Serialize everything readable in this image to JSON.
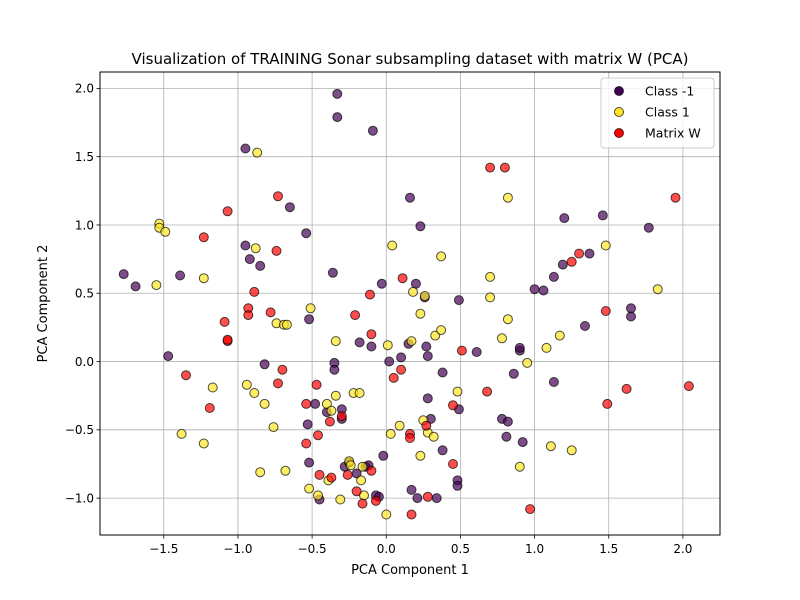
{
  "chart_data": {
    "type": "scatter",
    "title": "Visualization of TRAINING Sonar subsampling dataset with matrix W (PCA)",
    "xlabel": "PCA Component 1",
    "ylabel": "PCA Component 2",
    "xlim": [
      -1.93,
      2.25
    ],
    "ylim": [
      -1.27,
      2.12
    ],
    "xticks": [
      -1.5,
      -1.0,
      -0.5,
      0.0,
      0.5,
      1.0,
      1.5,
      2.0
    ],
    "xtick_labels": [
      "−1.5",
      "−1.0",
      "−0.5",
      "0.0",
      "0.5",
      "1.0",
      "1.5",
      "2.0"
    ],
    "yticks": [
      -1.0,
      -0.5,
      0.0,
      0.5,
      1.0,
      1.5,
      2.0
    ],
    "ytick_labels": [
      "−1.0",
      "−0.5",
      "0.0",
      "0.5",
      "1.0",
      "1.5",
      "2.0"
    ],
    "grid": true,
    "legend_position": "top-right",
    "series": [
      {
        "name": "Class -1",
        "color": "#440154",
        "points": [
          [
            -1.77,
            0.64
          ],
          [
            -1.69,
            0.55
          ],
          [
            -1.47,
            0.04
          ],
          [
            -1.39,
            0.63
          ],
          [
            -0.95,
            1.56
          ],
          [
            -0.95,
            0.85
          ],
          [
            -0.92,
            0.75
          ],
          [
            -0.85,
            0.7
          ],
          [
            -0.82,
            -0.02
          ],
          [
            -0.65,
            1.13
          ],
          [
            -0.54,
            0.94
          ],
          [
            -0.52,
            0.31
          ],
          [
            -0.53,
            -0.46
          ],
          [
            -0.52,
            -0.74
          ],
          [
            -0.48,
            -0.31
          ],
          [
            -0.45,
            -1.01
          ],
          [
            -0.4,
            -0.37
          ],
          [
            -0.36,
            0.65
          ],
          [
            -0.35,
            -0.01
          ],
          [
            -0.35,
            -0.06
          ],
          [
            -0.33,
            1.96
          ],
          [
            -0.33,
            1.79
          ],
          [
            -0.3,
            -0.42
          ],
          [
            -0.3,
            -0.35
          ],
          [
            -0.28,
            -0.77
          ],
          [
            -0.25,
            -0.74
          ],
          [
            -0.2,
            -0.82
          ],
          [
            -0.18,
            0.14
          ],
          [
            -0.14,
            -0.77
          ],
          [
            -0.12,
            -0.76
          ],
          [
            -0.1,
            0.11
          ],
          [
            -0.09,
            1.69
          ],
          [
            -0.07,
            -0.98
          ],
          [
            -0.05,
            -0.99
          ],
          [
            -0.03,
            0.57
          ],
          [
            -0.02,
            -0.69
          ],
          [
            0.02,
            0.0
          ],
          [
            0.1,
            0.03
          ],
          [
            0.15,
            0.13
          ],
          [
            0.16,
            1.2
          ],
          [
            0.17,
            -0.94
          ],
          [
            0.2,
            0.57
          ],
          [
            0.21,
            -1.0
          ],
          [
            0.23,
            0.99
          ],
          [
            0.26,
            0.47
          ],
          [
            0.27,
            0.11
          ],
          [
            0.28,
            0.04
          ],
          [
            0.28,
            -0.27
          ],
          [
            0.3,
            -0.42
          ],
          [
            0.34,
            -1.0
          ],
          [
            0.38,
            -0.08
          ],
          [
            0.38,
            -0.65
          ],
          [
            0.48,
            -0.87
          ],
          [
            0.48,
            -0.91
          ],
          [
            0.49,
            0.45
          ],
          [
            0.49,
            -0.35
          ],
          [
            0.61,
            0.07
          ],
          [
            0.78,
            -0.42
          ],
          [
            0.81,
            -0.55
          ],
          [
            0.82,
            -0.44
          ],
          [
            0.86,
            -0.09
          ],
          [
            0.9,
            0.08
          ],
          [
            0.9,
            0.1
          ],
          [
            0.92,
            -0.59
          ],
          [
            1.0,
            0.53
          ],
          [
            1.06,
            0.52
          ],
          [
            1.13,
            -0.15
          ],
          [
            1.13,
            0.62
          ],
          [
            1.2,
            1.05
          ],
          [
            1.19,
            0.71
          ],
          [
            1.34,
            0.26
          ],
          [
            1.37,
            0.79
          ],
          [
            1.46,
            1.07
          ],
          [
            1.65,
            0.39
          ],
          [
            1.65,
            0.33
          ],
          [
            1.77,
            0.98
          ]
        ]
      },
      {
        "name": "Class 1",
        "color": "#fde725",
        "points": [
          [
            -1.53,
            1.01
          ],
          [
            -1.53,
            0.98
          ],
          [
            -1.49,
            0.95
          ],
          [
            -1.55,
            0.56
          ],
          [
            -1.38,
            -0.53
          ],
          [
            -1.23,
            0.61
          ],
          [
            -1.23,
            -0.6
          ],
          [
            -1.17,
            -0.19
          ],
          [
            -0.94,
            -0.17
          ],
          [
            -0.89,
            -0.23
          ],
          [
            -0.87,
            1.53
          ],
          [
            -0.88,
            0.83
          ],
          [
            -0.85,
            -0.81
          ],
          [
            -0.82,
            -0.31
          ],
          [
            -0.76,
            -0.48
          ],
          [
            -0.74,
            0.28
          ],
          [
            -0.69,
            0.27
          ],
          [
            -0.67,
            0.27
          ],
          [
            -0.68,
            -0.8
          ],
          [
            -0.51,
            0.39
          ],
          [
            -0.52,
            -0.93
          ],
          [
            -0.46,
            -0.98
          ],
          [
            -0.4,
            -0.31
          ],
          [
            -0.39,
            -0.87
          ],
          [
            -0.37,
            -0.36
          ],
          [
            -0.34,
            0.15
          ],
          [
            -0.34,
            -0.25
          ],
          [
            -0.25,
            -0.73
          ],
          [
            -0.24,
            -0.76
          ],
          [
            -0.22,
            -0.23
          ],
          [
            -0.18,
            -0.23
          ],
          [
            -0.17,
            -0.87
          ],
          [
            -0.16,
            -0.77
          ],
          [
            -0.15,
            -0.98
          ],
          [
            0.01,
            0.12
          ],
          [
            0.03,
            -0.53
          ],
          [
            0.04,
            0.85
          ],
          [
            0.09,
            -0.47
          ],
          [
            0.17,
            0.15
          ],
          [
            0.18,
            0.51
          ],
          [
            0.23,
            -0.69
          ],
          [
            0.23,
            0.35
          ],
          [
            0.25,
            -0.43
          ],
          [
            0.26,
            0.48
          ],
          [
            0.28,
            -0.52
          ],
          [
            0.32,
            -0.55
          ],
          [
            0.33,
            0.19
          ],
          [
            0.37,
            0.77
          ],
          [
            0.37,
            0.23
          ],
          [
            0.48,
            -0.22
          ],
          [
            0.7,
            0.62
          ],
          [
            0.7,
            0.47
          ],
          [
            0.78,
            0.17
          ],
          [
            0.82,
            1.2
          ],
          [
            0.82,
            0.31
          ],
          [
            0.9,
            -0.77
          ],
          [
            0.95,
            -0.01
          ],
          [
            1.08,
            0.1
          ],
          [
            1.11,
            -0.62
          ],
          [
            1.17,
            0.19
          ],
          [
            1.25,
            -0.65
          ],
          [
            1.48,
            0.85
          ],
          [
            1.83,
            0.53
          ],
          [
            0.0,
            -1.12
          ],
          [
            -0.31,
            -1.01
          ]
        ]
      },
      {
        "name": "Matrix W",
        "color": "#ff0000",
        "points": [
          [
            -1.35,
            -0.1
          ],
          [
            -1.23,
            0.91
          ],
          [
            -1.19,
            -0.34
          ],
          [
            -1.09,
            0.29
          ],
          [
            -1.07,
            0.15
          ],
          [
            -1.07,
            0.16
          ],
          [
            -1.07,
            1.1
          ],
          [
            -0.93,
            0.39
          ],
          [
            -0.93,
            0.34
          ],
          [
            -0.89,
            0.51
          ],
          [
            -0.78,
            0.36
          ],
          [
            -0.73,
            1.21
          ],
          [
            -0.74,
            0.81
          ],
          [
            -0.73,
            -0.16
          ],
          [
            -0.7,
            -0.06
          ],
          [
            -0.54,
            -0.31
          ],
          [
            -0.54,
            -0.6
          ],
          [
            -0.47,
            -0.17
          ],
          [
            -0.46,
            -0.54
          ],
          [
            -0.45,
            -0.83
          ],
          [
            -0.38,
            -0.44
          ],
          [
            -0.37,
            -0.85
          ],
          [
            -0.3,
            -0.4
          ],
          [
            -0.26,
            -0.83
          ],
          [
            -0.21,
            0.34
          ],
          [
            -0.2,
            -0.95
          ],
          [
            -0.16,
            -1.04
          ],
          [
            -0.1,
            0.2
          ],
          [
            -0.1,
            -0.8
          ],
          [
            -0.11,
            0.49
          ],
          [
            -0.07,
            -1.02
          ],
          [
            0.05,
            -0.12
          ],
          [
            0.1,
            -0.06
          ],
          [
            0.11,
            0.61
          ],
          [
            0.16,
            -0.53
          ],
          [
            0.16,
            -0.56
          ],
          [
            0.17,
            -1.12
          ],
          [
            0.27,
            -0.47
          ],
          [
            0.28,
            -0.99
          ],
          [
            0.45,
            -0.32
          ],
          [
            0.45,
            -0.75
          ],
          [
            0.51,
            0.08
          ],
          [
            0.68,
            -0.22
          ],
          [
            0.7,
            1.42
          ],
          [
            0.8,
            1.42
          ],
          [
            0.97,
            -1.08
          ],
          [
            1.25,
            0.73
          ],
          [
            1.3,
            0.79
          ],
          [
            1.48,
            0.37
          ],
          [
            1.49,
            -0.31
          ],
          [
            1.62,
            -0.2
          ],
          [
            1.95,
            1.2
          ],
          [
            2.04,
            -0.18
          ]
        ]
      }
    ]
  }
}
